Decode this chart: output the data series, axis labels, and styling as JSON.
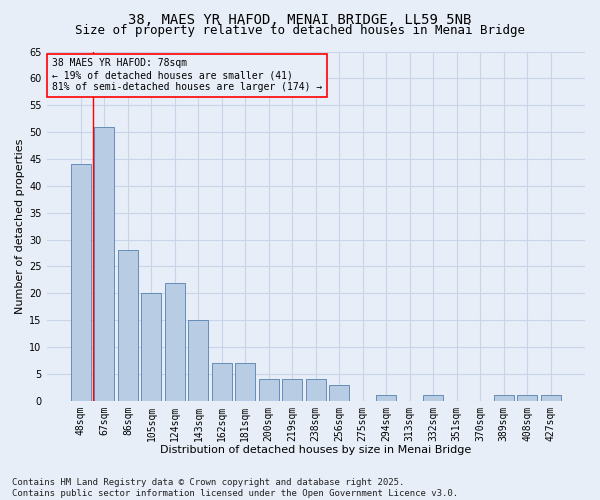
{
  "title_line1": "38, MAES YR HAFOD, MENAI BRIDGE, LL59 5NB",
  "title_line2": "Size of property relative to detached houses in Menai Bridge",
  "xlabel": "Distribution of detached houses by size in Menai Bridge",
  "ylabel": "Number of detached properties",
  "categories": [
    "48sqm",
    "67sqm",
    "86sqm",
    "105sqm",
    "124sqm",
    "143sqm",
    "162sqm",
    "181sqm",
    "200sqm",
    "219sqm",
    "238sqm",
    "256sqm",
    "275sqm",
    "294sqm",
    "313sqm",
    "332sqm",
    "351sqm",
    "370sqm",
    "389sqm",
    "408sqm",
    "427sqm"
  ],
  "values": [
    44,
    51,
    28,
    20,
    22,
    15,
    7,
    7,
    4,
    4,
    4,
    3,
    0,
    1,
    0,
    1,
    0,
    0,
    1,
    1,
    1
  ],
  "bar_color": "#b8cce4",
  "bar_edge_color": "#5580b0",
  "grid_color": "#c8d4e8",
  "background_color": "#e8eef8",
  "annotation_box_text1": "38 MAES YR HAFOD: 78sqm",
  "annotation_box_text2": "← 19% of detached houses are smaller (41)",
  "annotation_box_text3": "81% of semi-detached houses are larger (174) →",
  "vline_x_index": 1,
  "ylim": [
    0,
    65
  ],
  "yticks": [
    0,
    5,
    10,
    15,
    20,
    25,
    30,
    35,
    40,
    45,
    50,
    55,
    60,
    65
  ],
  "footer_line1": "Contains HM Land Registry data © Crown copyright and database right 2025.",
  "footer_line2": "Contains public sector information licensed under the Open Government Licence v3.0.",
  "title_fontsize": 10,
  "subtitle_fontsize": 9,
  "axis_label_fontsize": 8,
  "tick_fontsize": 7,
  "annotation_fontsize": 7,
  "footer_fontsize": 6.5
}
